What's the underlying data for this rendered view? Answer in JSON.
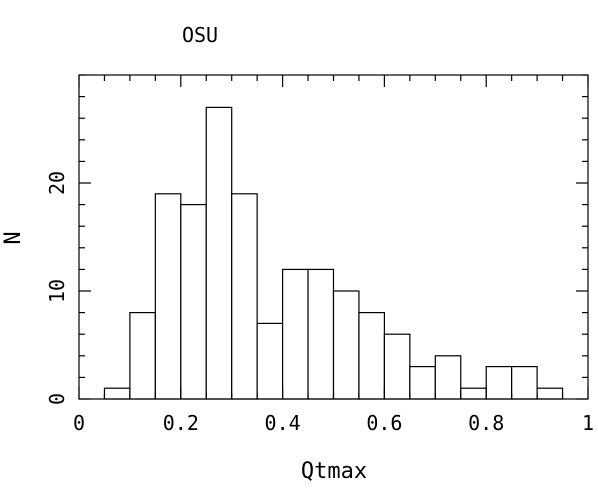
{
  "chart_data": {
    "type": "bar",
    "title": "OSU",
    "xlabel": "Qtmax",
    "ylabel": "N",
    "xlim": [
      0,
      1
    ],
    "ylim": [
      0,
      30
    ],
    "grid": false,
    "bin_width": 0.05,
    "bins": [
      {
        "x0": 0.05,
        "x1": 0.1,
        "value": 1
      },
      {
        "x0": 0.1,
        "x1": 0.15,
        "value": 8
      },
      {
        "x0": 0.15,
        "x1": 0.2,
        "value": 19
      },
      {
        "x0": 0.2,
        "x1": 0.25,
        "value": 18
      },
      {
        "x0": 0.25,
        "x1": 0.3,
        "value": 27
      },
      {
        "x0": 0.3,
        "x1": 0.35,
        "value": 19
      },
      {
        "x0": 0.35,
        "x1": 0.4,
        "value": 7
      },
      {
        "x0": 0.4,
        "x1": 0.45,
        "value": 12
      },
      {
        "x0": 0.45,
        "x1": 0.5,
        "value": 12
      },
      {
        "x0": 0.5,
        "x1": 0.55,
        "value": 10
      },
      {
        "x0": 0.55,
        "x1": 0.6,
        "value": 8
      },
      {
        "x0": 0.6,
        "x1": 0.65,
        "value": 6
      },
      {
        "x0": 0.65,
        "x1": 0.7,
        "value": 3
      },
      {
        "x0": 0.7,
        "x1": 0.75,
        "value": 4
      },
      {
        "x0": 0.75,
        "x1": 0.8,
        "value": 1
      },
      {
        "x0": 0.8,
        "x1": 0.85,
        "value": 3
      },
      {
        "x0": 0.85,
        "x1": 0.9,
        "value": 3
      },
      {
        "x0": 0.9,
        "x1": 0.95,
        "value": 1
      }
    ],
    "x_ticks_major": [
      {
        "value": 0,
        "label": "0"
      },
      {
        "value": 0.2,
        "label": "0.2"
      },
      {
        "value": 0.4,
        "label": "0.4"
      },
      {
        "value": 0.6,
        "label": "0.6"
      },
      {
        "value": 0.8,
        "label": "0.8"
      },
      {
        "value": 1,
        "label": "1"
      }
    ],
    "x_minor_step": 0.05,
    "y_ticks_major": [
      {
        "value": 0,
        "label": "0"
      },
      {
        "value": 10,
        "label": "10"
      },
      {
        "value": 20,
        "label": "20"
      }
    ],
    "y_minor_step": 2
  }
}
